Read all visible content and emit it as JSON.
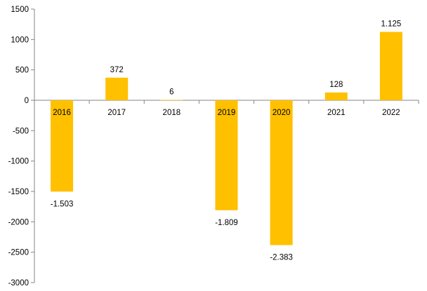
{
  "chart_data": {
    "type": "bar",
    "categories": [
      "2016",
      "2017",
      "2018",
      "2019",
      "2020",
      "2021",
      "2022"
    ],
    "values": [
      -1503,
      372,
      6,
      -1809,
      -2383,
      128,
      1125
    ],
    "data_labels": [
      "-1.503",
      "372",
      "6",
      "-1.809",
      "-2.383",
      "128",
      "1.125"
    ],
    "ylim": [
      -3000,
      1500
    ],
    "yticks": [
      1500,
      1000,
      500,
      0,
      -500,
      -1000,
      -1500,
      -2000,
      -2500,
      -3000
    ],
    "ytick_labels": [
      "1500",
      "1000",
      "500",
      "0",
      "-500",
      "-1000",
      "-1500",
      "-2000",
      "-2500",
      "-3000"
    ],
    "title": "",
    "xlabel": "",
    "ylabel": "",
    "grid": false,
    "legend": "none",
    "bar_color": "#FFC000",
    "axis_color": "#868686"
  }
}
